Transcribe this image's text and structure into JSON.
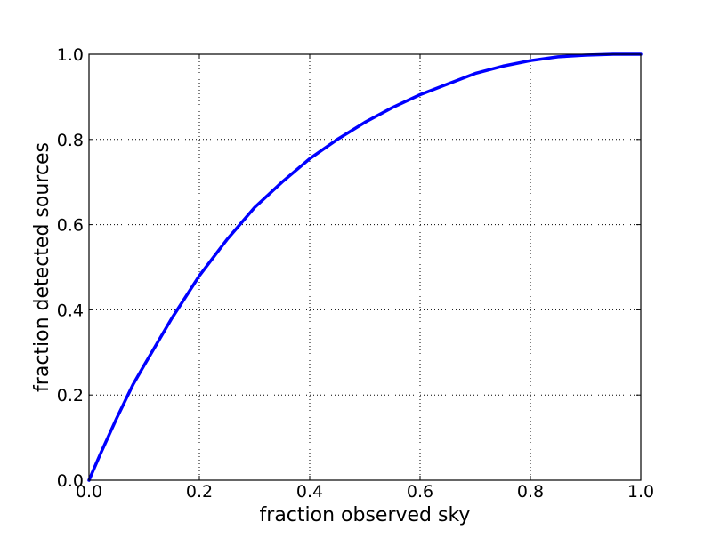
{
  "chart_data": {
    "type": "line",
    "title": "",
    "xlabel": "fraction observed sky",
    "ylabel": "fraction detected sources",
    "xlim": [
      0.0,
      1.0
    ],
    "ylim": [
      0.0,
      1.0
    ],
    "grid": true,
    "x_ticks": [
      "0.0",
      "0.2",
      "0.4",
      "0.6",
      "0.8",
      "1.0"
    ],
    "y_ticks": [
      "0.0",
      "0.2",
      "0.4",
      "0.6",
      "0.8",
      "1.0"
    ],
    "series": [
      {
        "color": "#0000ff",
        "x": [
          0.0,
          0.02,
          0.05,
          0.08,
          0.1,
          0.15,
          0.2,
          0.25,
          0.3,
          0.35,
          0.4,
          0.45,
          0.5,
          0.55,
          0.6,
          0.65,
          0.7,
          0.75,
          0.8,
          0.85,
          0.9,
          0.95,
          1.0
        ],
        "y": [
          0.0,
          0.06,
          0.145,
          0.225,
          0.27,
          0.38,
          0.48,
          0.565,
          0.64,
          0.7,
          0.755,
          0.8,
          0.84,
          0.875,
          0.905,
          0.93,
          0.955,
          0.972,
          0.985,
          0.994,
          0.998,
          1.0,
          1.0
        ]
      }
    ]
  }
}
